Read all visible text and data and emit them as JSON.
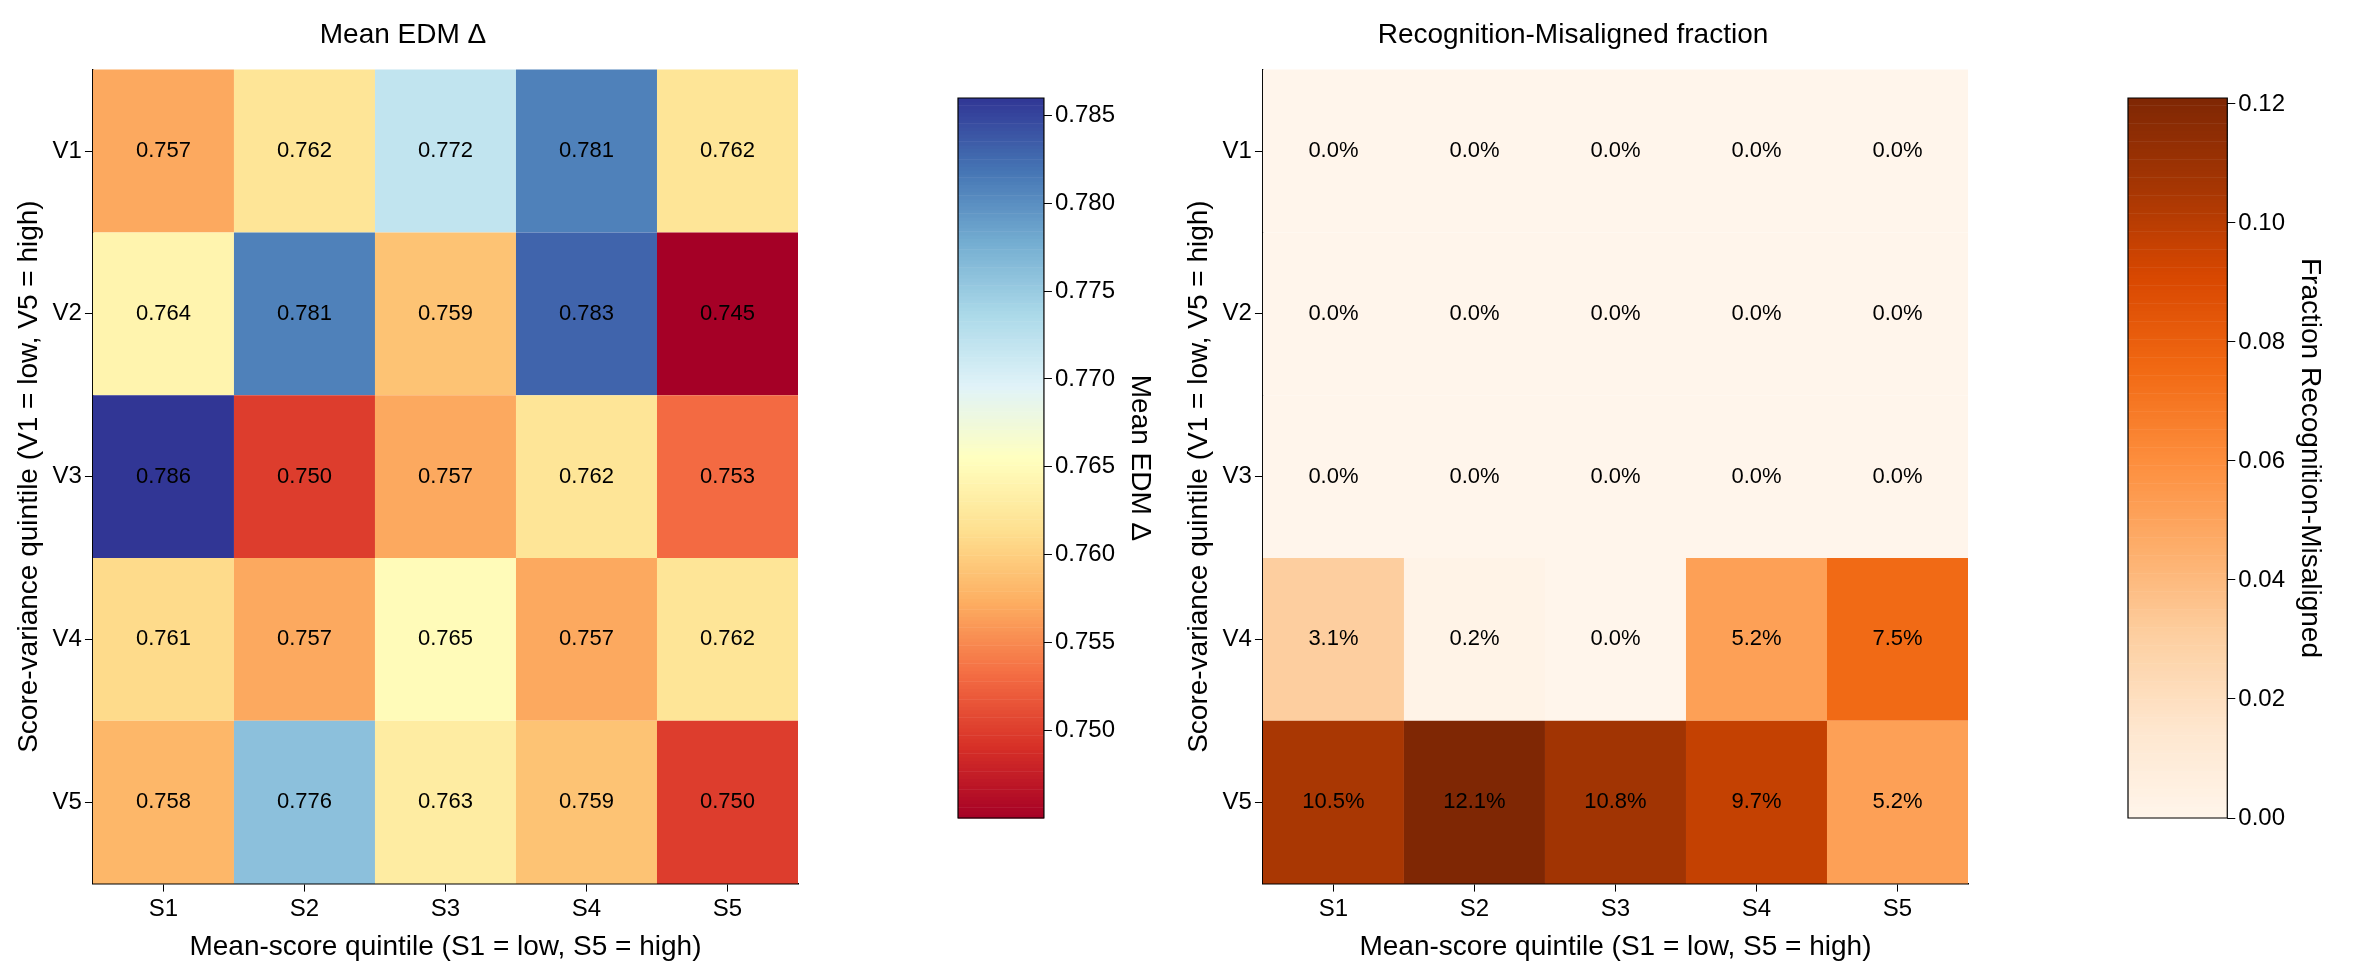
{
  "chart_data": [
    {
      "type": "heatmap",
      "title": "Mean EDM Δ",
      "xlabel": "Mean-score quintile (S1 = low, S5 = high)",
      "ylabel": "Score-variance quintile (V1 = low, V5 = high)",
      "clabel": "Mean EDM Δ",
      "categories": [
        "S1",
        "S2",
        "S3",
        "S4",
        "S5"
      ],
      "y_categories": [
        "V1",
        "V2",
        "V3",
        "V4",
        "V5"
      ],
      "cells": [
        [
          0.757,
          0.762,
          0.772,
          0.781,
          0.762
        ],
        [
          0.764,
          0.781,
          0.759,
          0.783,
          0.745
        ],
        [
          0.786,
          0.75,
          0.757,
          0.762,
          0.753
        ],
        [
          0.761,
          0.757,
          0.765,
          0.757,
          0.762
        ],
        [
          0.758,
          0.776,
          0.763,
          0.759,
          0.75
        ]
      ],
      "cell_labels": [
        [
          "0.757",
          "0.762",
          "0.772",
          "0.781",
          "0.762"
        ],
        [
          "0.764",
          "0.781",
          "0.759",
          "0.783",
          "0.745"
        ],
        [
          "0.786",
          "0.750",
          "0.757",
          "0.762",
          "0.753"
        ],
        [
          "0.761",
          "0.757",
          "0.765",
          "0.757",
          "0.762"
        ],
        [
          "0.758",
          "0.776",
          "0.763",
          "0.759",
          "0.750"
        ]
      ],
      "clim": [
        0.745,
        0.786
      ],
      "cticks": [
        {
          "value": 0.75,
          "label": "0.750"
        },
        {
          "value": 0.755,
          "label": "0.755"
        },
        {
          "value": 0.76,
          "label": "0.760"
        },
        {
          "value": 0.765,
          "label": "0.765"
        },
        {
          "value": 0.77,
          "label": "0.770"
        },
        {
          "value": 0.775,
          "label": "0.775"
        },
        {
          "value": 0.78,
          "label": "0.780"
        },
        {
          "value": 0.785,
          "label": "0.785"
        }
      ]
    },
    {
      "type": "heatmap",
      "title": "Recognition-Misaligned fraction",
      "xlabel": "Mean-score quintile (S1 = low, S5 = high)",
      "ylabel": "Score-variance quintile (V1 = low, V5 = high)",
      "clabel": "Fraction Recognition-Misaligned",
      "categories": [
        "S1",
        "S2",
        "S3",
        "S4",
        "S5"
      ],
      "y_categories": [
        "V1",
        "V2",
        "V3",
        "V4",
        "V5"
      ],
      "cells": [
        [
          0,
          0,
          0,
          0,
          0
        ],
        [
          0,
          0,
          0,
          0,
          0
        ],
        [
          0,
          0,
          0,
          0,
          0
        ],
        [
          0.031,
          0.002,
          0,
          0.052,
          0.075
        ],
        [
          0.105,
          0.121,
          0.108,
          0.097,
          0.052
        ]
      ],
      "cell_labels": [
        [
          "0.0%",
          "0.0%",
          "0.0%",
          "0.0%",
          "0.0%"
        ],
        [
          "0.0%",
          "0.0%",
          "0.0%",
          "0.0%",
          "0.0%"
        ],
        [
          "0.0%",
          "0.0%",
          "0.0%",
          "0.0%",
          "0.0%"
        ],
        [
          "3.1%",
          "0.2%",
          "0.0%",
          "5.2%",
          "7.5%"
        ],
        [
          "10.5%",
          "12.1%",
          "10.8%",
          "9.7%",
          "5.2%"
        ]
      ],
      "clim": [
        0,
        0.121
      ],
      "cticks": [
        {
          "value": 0,
          "label": "0.00"
        },
        {
          "value": 0.02,
          "label": "0.02"
        },
        {
          "value": 0.04,
          "label": "0.04"
        },
        {
          "value": 0.06,
          "label": "0.06"
        },
        {
          "value": 0.08,
          "label": "0.08"
        },
        {
          "value": 0.1,
          "label": "0.10"
        },
        {
          "value": 0.12,
          "label": "0.12"
        }
      ]
    }
  ]
}
